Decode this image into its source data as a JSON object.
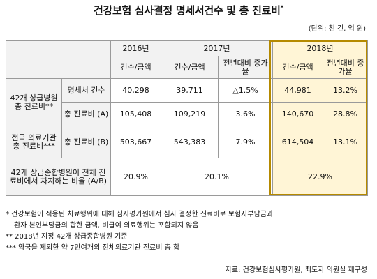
{
  "title": "건강보험 심사결정 명세서건수 및 총 진료비",
  "title_mark": "*",
  "unit": "(단위: 천 건, 억 원)",
  "headers": {
    "y2016": "2016년",
    "y2017": "2017년",
    "y2018": "2018년",
    "count_amount": "건수/금액",
    "yoy": "전년대비 증가율"
  },
  "rows": {
    "group1_label": "42개 상급병원 총 진료비**",
    "group2_label": "전국 의료기관 총 진료비***",
    "claims_label": "명세서 건수",
    "total_a_label": "총 진료비 (A)",
    "total_b_label": "총 진료비 (B)",
    "ratio_label": "42개 상급종합병원이 전체 진료비에서 차지하는 비율 (A/B)",
    "claims": {
      "v2016": "40,298",
      "v2017": "39,711",
      "g2017": "△1.5%",
      "v2018": "44,981",
      "g2018": "13.2%"
    },
    "total_a": {
      "v2016": "105,408",
      "v2017": "109,219",
      "g2017": "3.6%",
      "v2018": "140,670",
      "g2018": "28.8%"
    },
    "total_b": {
      "v2016": "503,667",
      "v2017": "543,383",
      "g2017": "7.9%",
      "v2018": "614,504",
      "g2018": "13.1%"
    },
    "ratio": {
      "v2016": "20.9%",
      "v2017": "20.1%",
      "v2018": "22.9%"
    }
  },
  "footnotes": {
    "n1a": "* 건강보험이 적용된 치료행위에 대해 심사평가원에서 심사 결정한 진료비로 보험자부담금과",
    "n1b": "환자 본인부담금의 합한 금액, 비급여 의료행위는 포함되지 않음",
    "n2": "** 2018년 지정 42개 상급종합병원 기준",
    "n3": "*** 약국을 제외한 약 7만여개의 전체의료기관 진료비 총 합"
  },
  "source": "자료: 건강보험심사평가원, 최도자 의원실 재구성"
}
